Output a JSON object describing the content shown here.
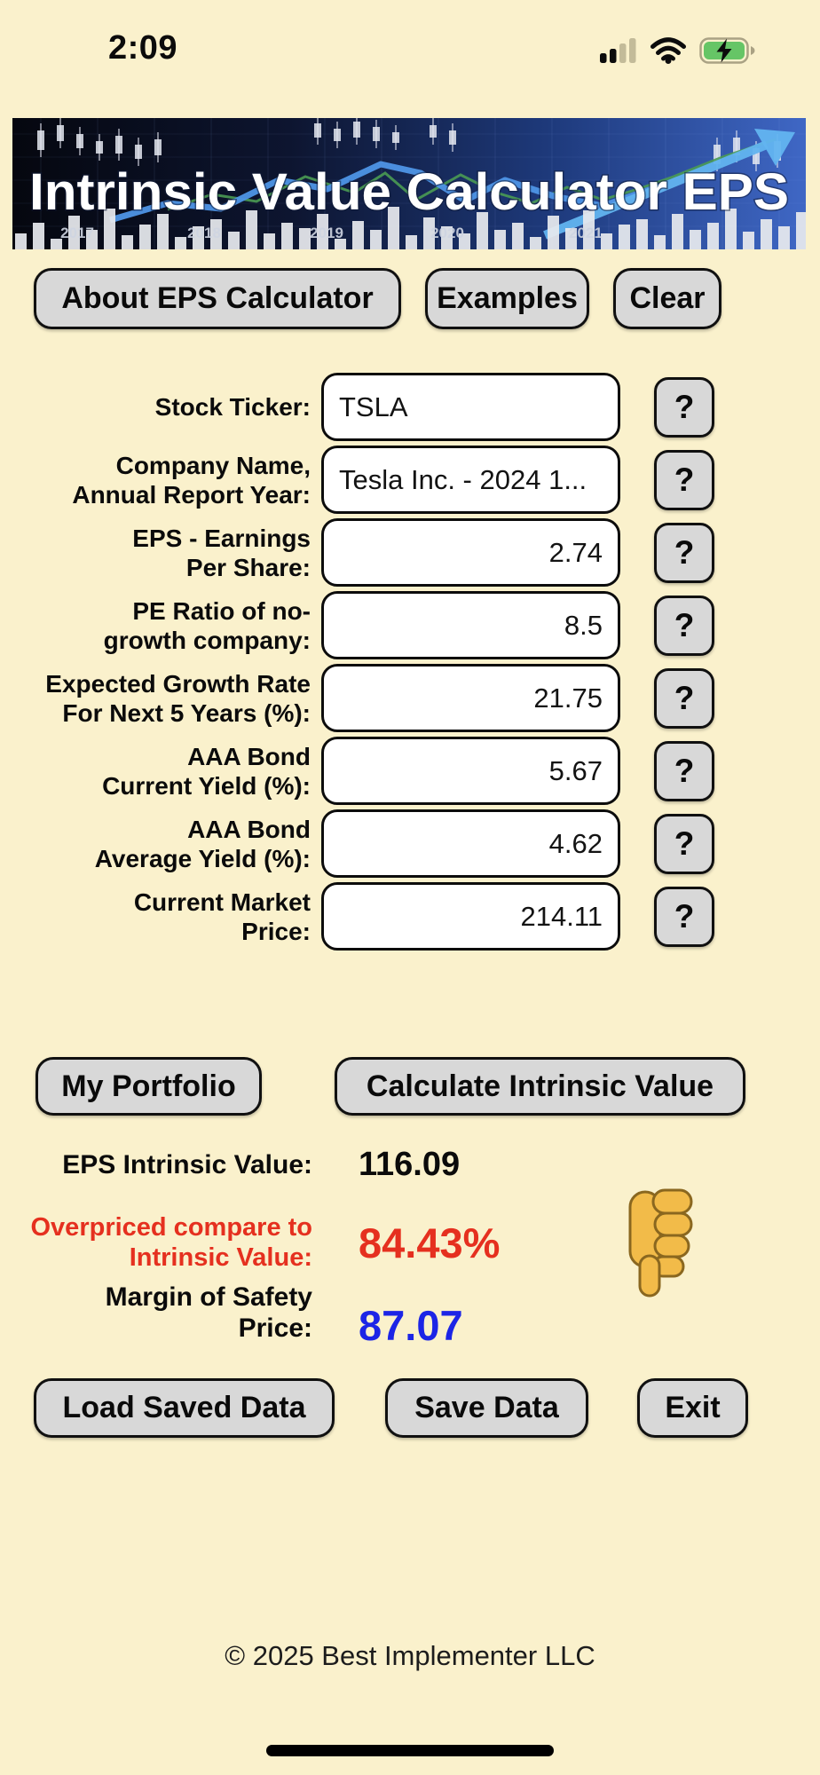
{
  "status_bar": {
    "time": "2:09",
    "icons": [
      "cellular-signal-icon",
      "wifi-icon",
      "battery-charging-icon"
    ],
    "battery_green": "#66C566"
  },
  "banner": {
    "title": "Intrinsic Value Calculator EPS",
    "years": [
      "2017",
      "2018",
      "2019",
      "2020",
      "2021"
    ]
  },
  "toolbar": {
    "about_label": "About EPS Calculator",
    "examples_label": "Examples",
    "clear_label": "Clear"
  },
  "form": {
    "help_label": "?",
    "fields": [
      {
        "label": "Stock Ticker:",
        "value": "TSLA",
        "align": "left"
      },
      {
        "label": "Company Name,\nAnnual Report Year:",
        "value": "Tesla Inc. - 2024 1...",
        "align": "left"
      },
      {
        "label": "EPS - Earnings\nPer Share:",
        "value": "2.74",
        "align": "right"
      },
      {
        "label": "PE Ratio of no-\ngrowth company:",
        "value": "8.5",
        "align": "right"
      },
      {
        "label": "Expected Growth Rate\nFor Next 5 Years (%):",
        "value": "21.75",
        "align": "right"
      },
      {
        "label": "AAA Bond\nCurrent Yield (%):",
        "value": "5.67",
        "align": "right"
      },
      {
        "label": "AAA Bond\nAverage Yield (%):",
        "value": "4.62",
        "align": "right"
      },
      {
        "label": "Current Market\nPrice:",
        "value": "214.11",
        "align": "right"
      }
    ]
  },
  "actions": {
    "portfolio_label": "My Portfolio",
    "calculate_label": "Calculate Intrinsic Value"
  },
  "results": {
    "intrinsic_label": "EPS Intrinsic Value:",
    "intrinsic_value": "116.09",
    "overpriced_label": "Overpriced compare to\nIntrinsic Value:",
    "overpriced_value": "84.43%",
    "overpriced_color": "#E5301F",
    "margin_label": "Margin of Safety\nPrice:",
    "margin_value": "87.07",
    "margin_color": "#1C25E6",
    "verdict_icon": "thumbs-down-icon"
  },
  "storage": {
    "load_label": "Load Saved Data",
    "save_label": "Save Data",
    "exit_label": "Exit"
  },
  "footer": {
    "copyright": "© 2025 Best Implementer LLC"
  }
}
